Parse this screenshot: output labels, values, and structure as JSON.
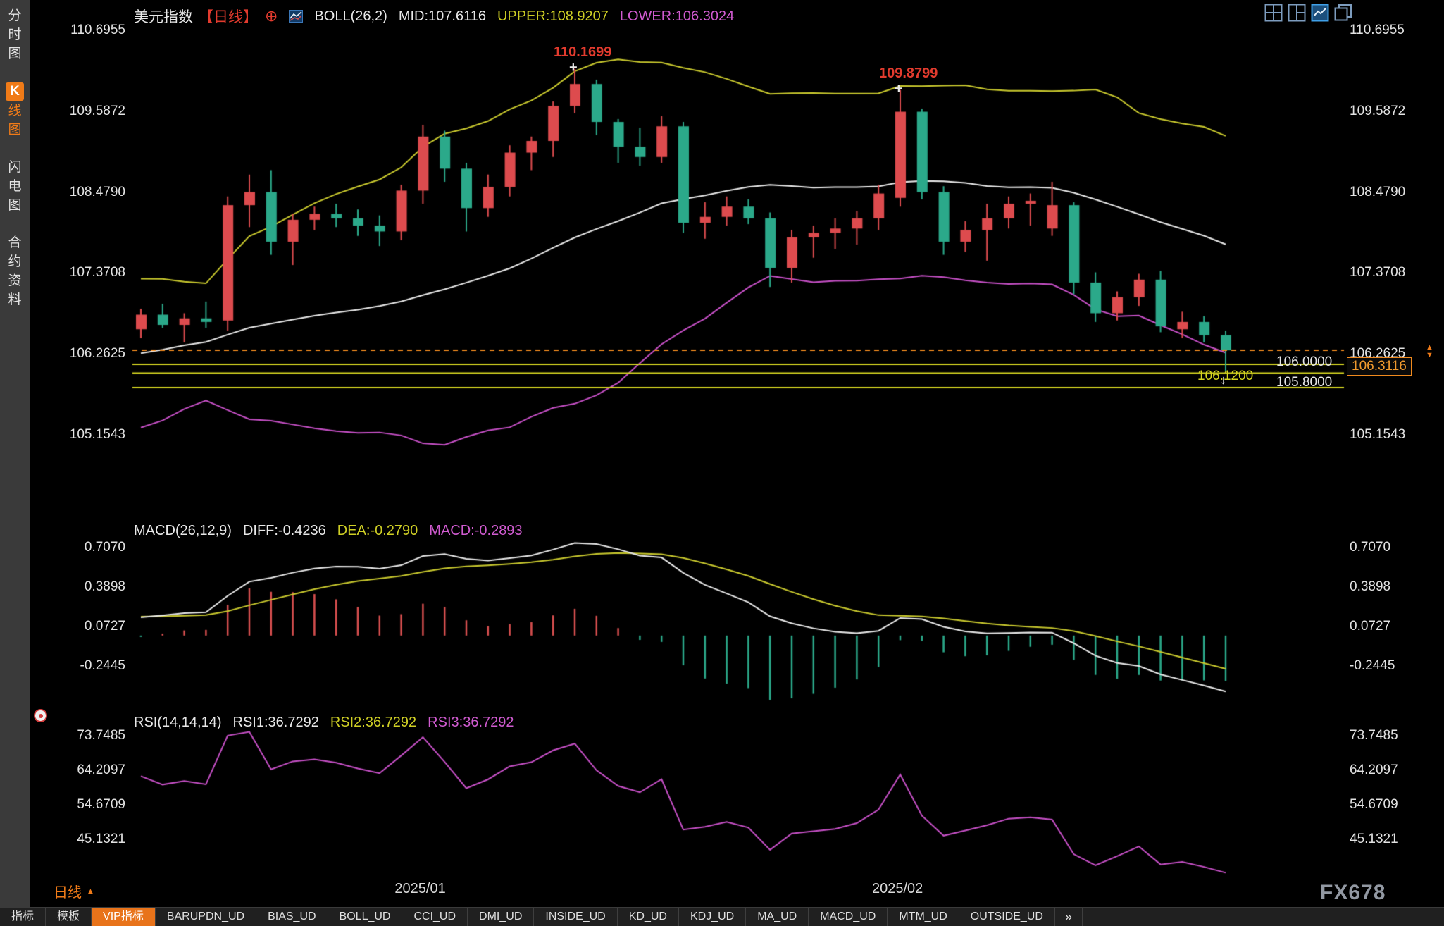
{
  "window": {
    "watermark": "FX678"
  },
  "sidebar": {
    "items": [
      {
        "label": "分时图",
        "active": false
      },
      {
        "label": "K线图",
        "active": true
      },
      {
        "label": "闪电图",
        "active": false
      },
      {
        "label": "合约资料",
        "active": false
      }
    ]
  },
  "header": {
    "title": "美元指数",
    "period": "【日线】",
    "plus_icon": "⊕",
    "boll": "BOLL(26,2)",
    "mid": "MID:107.6116",
    "upper": "UPPER:108.9207",
    "lower": "LOWER:106.3024"
  },
  "macd_header": {
    "name": "MACD(26,12,9)",
    "diff": "DIFF:-0.4236",
    "dea": "DEA:-0.2790",
    "macd": "MACD:-0.2893"
  },
  "rsi_header": {
    "name": "RSI(14,14,14)",
    "rsi1": "RSI1:36.7292",
    "rsi2": "RSI2:36.7292",
    "rsi3": "RSI3:36.7292"
  },
  "footer": {
    "period_label": "日线",
    "period_arrow": "▲"
  },
  "bottom_bar": {
    "tabs": [
      {
        "label": "指标"
      },
      {
        "label": "模板"
      },
      {
        "label": "VIP指标",
        "active": true
      },
      {
        "label": "BARUPDN_UD"
      },
      {
        "label": "BIAS_UD"
      },
      {
        "label": "BOLL_UD"
      },
      {
        "label": "CCI_UD"
      },
      {
        "label": "DMI_UD"
      },
      {
        "label": "INSIDE_UD"
      },
      {
        "label": "KD_UD"
      },
      {
        "label": "KDJ_UD"
      },
      {
        "label": "MA_UD"
      },
      {
        "label": "MACD_UD"
      },
      {
        "label": "MTM_UD"
      },
      {
        "label": "OUTSIDE_UD"
      }
    ],
    "more": "»"
  },
  "colors": {
    "up": "#dd4b4e",
    "down": "#2ba98a",
    "boll_mid": "#e9e9e9",
    "boll_up": "#c9c92e",
    "boll_lo": "#c750c7",
    "price_line": "#f08a1e",
    "level_line": "#d6d620",
    "macd_diff": "#e9e9e9",
    "macd_dea": "#c9c92e",
    "hist_pos": "#d94f4f",
    "hist_neg": "#2ba98a",
    "rsi_line": "#c750c7",
    "annotation": "#e23b2e",
    "accent_orange": "#f07b18"
  },
  "chart_data": {
    "type": "candlestick",
    "symbol": "美元指数",
    "interval": "日线",
    "x_labels": [
      {
        "label": "2025/01",
        "index": 13
      },
      {
        "label": "2025/02",
        "index": 35
      }
    ],
    "main": {
      "y_ticks": [
        "110.6955",
        "109.5872",
        "108.4790",
        "107.3708",
        "106.2625",
        "105.1543"
      ],
      "boll_params": {
        "period": 26,
        "k": 2
      },
      "levels": [
        {
          "price": 106.12,
          "label": "106.1200",
          "color": "#d6d620"
        },
        {
          "price": 106.0,
          "label": "106.0000",
          "color": "#e6e6e6"
        },
        {
          "price": 105.8,
          "label": "105.8000",
          "color": "#e6e6e6"
        }
      ],
      "last_price": {
        "value": 106.3116,
        "label": "106.3116"
      },
      "annotations": [
        {
          "index": 20,
          "price": 110.1699,
          "label": "110.1699"
        },
        {
          "index": 35,
          "price": 109.8799,
          "label": "109.8799"
        }
      ],
      "low_marker_index": 50,
      "prehistory_closes": [
        105.3,
        105.42,
        105.2,
        105.48,
        105.72,
        106.0,
        106.38,
        106.62,
        106.82,
        107.0,
        106.98,
        106.62,
        106.88,
        106.98,
        106.72,
        105.92,
        106.08,
        106.38,
        105.72,
        105.82,
        106.28,
        106.4,
        106.3,
        105.92,
        106.1,
        106.55
      ],
      "candles": [
        [
          106.6,
          106.88,
          106.48,
          106.8
        ],
        [
          106.8,
          106.95,
          106.62,
          106.66
        ],
        [
          106.66,
          106.82,
          106.42,
          106.75
        ],
        [
          106.75,
          106.98,
          106.62,
          106.7
        ],
        [
          106.72,
          108.42,
          106.58,
          108.3
        ],
        [
          108.3,
          108.72,
          108.0,
          108.48
        ],
        [
          108.48,
          108.78,
          107.62,
          107.8
        ],
        [
          107.8,
          108.18,
          107.48,
          108.1
        ],
        [
          108.1,
          108.28,
          107.96,
          108.18
        ],
        [
          108.18,
          108.32,
          108.0,
          108.12
        ],
        [
          108.12,
          108.24,
          107.88,
          108.02
        ],
        [
          108.02,
          108.16,
          107.74,
          107.94
        ],
        [
          107.94,
          108.58,
          107.82,
          108.5
        ],
        [
          108.5,
          109.4,
          108.32,
          109.24
        ],
        [
          109.24,
          109.32,
          108.62,
          108.8
        ],
        [
          108.8,
          108.88,
          107.94,
          108.26
        ],
        [
          108.26,
          108.72,
          108.14,
          108.55
        ],
        [
          108.55,
          109.12,
          108.42,
          109.02
        ],
        [
          109.02,
          109.24,
          108.78,
          109.18
        ],
        [
          109.18,
          109.72,
          108.96,
          109.66
        ],
        [
          109.66,
          110.17,
          109.56,
          109.96
        ],
        [
          109.96,
          110.02,
          109.26,
          109.44
        ],
        [
          109.44,
          109.48,
          108.88,
          109.1
        ],
        [
          109.1,
          109.36,
          108.84,
          108.96
        ],
        [
          108.96,
          109.52,
          108.88,
          109.38
        ],
        [
          109.38,
          109.44,
          107.92,
          108.06
        ],
        [
          108.06,
          108.34,
          107.84,
          108.14
        ],
        [
          108.14,
          108.42,
          108.02,
          108.28
        ],
        [
          108.28,
          108.38,
          108.04,
          108.12
        ],
        [
          108.12,
          108.2,
          107.18,
          107.44
        ],
        [
          107.44,
          107.96,
          107.24,
          107.86
        ],
        [
          107.86,
          108.02,
          107.58,
          107.92
        ],
        [
          107.92,
          108.12,
          107.7,
          107.98
        ],
        [
          107.98,
          108.22,
          107.76,
          108.12
        ],
        [
          108.12,
          108.58,
          107.96,
          108.46
        ],
        [
          108.4,
          109.88,
          108.28,
          109.58
        ],
        [
          109.58,
          109.62,
          108.38,
          108.48
        ],
        [
          108.48,
          108.56,
          107.62,
          107.8
        ],
        [
          107.8,
          108.08,
          107.66,
          107.96
        ],
        [
          107.96,
          108.32,
          107.54,
          108.12
        ],
        [
          108.12,
          108.42,
          107.98,
          108.32
        ],
        [
          108.32,
          108.46,
          108.02,
          108.36
        ],
        [
          107.98,
          108.62,
          107.88,
          108.3
        ],
        [
          108.3,
          108.34,
          107.08,
          107.24
        ],
        [
          107.24,
          107.38,
          106.7,
          106.82
        ],
        [
          106.82,
          107.12,
          106.72,
          107.04
        ],
        [
          107.04,
          107.36,
          106.92,
          107.28
        ],
        [
          107.28,
          107.4,
          106.56,
          106.64
        ],
        [
          106.6,
          106.84,
          106.48,
          106.7
        ],
        [
          106.7,
          106.78,
          106.42,
          106.52
        ],
        [
          106.52,
          106.58,
          106.02,
          106.3116
        ]
      ]
    },
    "macd": {
      "y_ticks": [
        "0.7070",
        "0.3898",
        "0.0727",
        "-0.2445"
      ],
      "params": {
        "fast": 12,
        "slow": 26,
        "signal": 9
      }
    },
    "rsi": {
      "y_ticks": [
        "73.7485",
        "64.2097",
        "54.6709",
        "45.1321"
      ],
      "params": [
        14,
        14,
        14
      ]
    }
  }
}
